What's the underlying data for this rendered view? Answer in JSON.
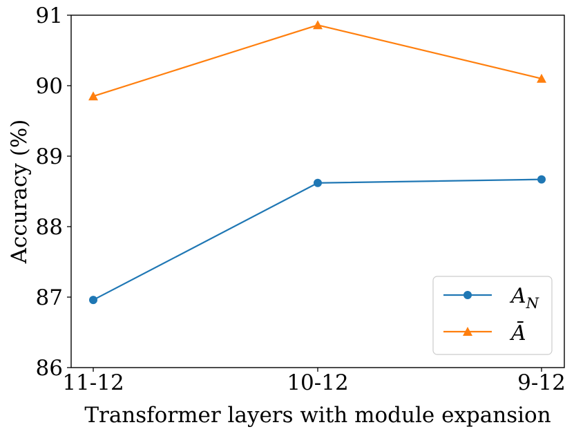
{
  "chart_data": {
    "type": "line",
    "categories": [
      "11-12",
      "10-12",
      "9-12"
    ],
    "series": [
      {
        "name": "A_N",
        "legend_label": "A",
        "legend_sub": "N",
        "color": "#1f77b4",
        "marker": "circle",
        "values": [
          86.96,
          88.62,
          88.67
        ]
      },
      {
        "name": "Ā",
        "legend_label": "Ā",
        "color": "#ff7f0e",
        "marker": "triangle",
        "values": [
          89.85,
          90.86,
          90.1
        ]
      }
    ],
    "xlabel": "Transformer layers with module expansion",
    "ylabel": "Accuracy (%)",
    "ylim": [
      86,
      91
    ],
    "yticks": [
      "86",
      "87",
      "88",
      "89",
      "90",
      "91"
    ],
    "grid": false,
    "legend_position": "lower-right"
  }
}
